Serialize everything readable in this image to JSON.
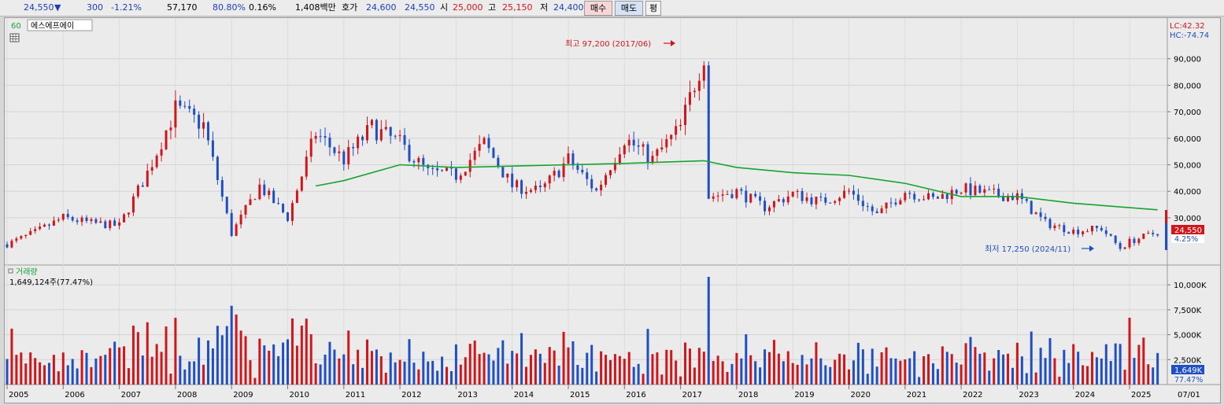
{
  "topbar": {
    "price": "24,550",
    "direction_arrow": "▼",
    "change": "300",
    "change_pct": "-1.21%",
    "volume": "57,170",
    "vol_ratio": "80.80%",
    "turnover_pct": "0.16%",
    "amount": "1,408백만",
    "bid_label": "호가",
    "bid1": "24,600",
    "bid2": "24,550",
    "open_label": "시",
    "open": "25,000",
    "high_label": "고",
    "high": "25,150",
    "low_label": "저",
    "low": "24,400",
    "buy_button": "매수",
    "sell_button": "매도",
    "eval_button": "평"
  },
  "price_panel": {
    "period": "60",
    "stock_name": "에스에프에이",
    "lc_label": "LC:42.32",
    "hc_label": "HC:-74.74",
    "max_annotation": "최고 97,200 (2017/06)",
    "min_annotation": "최저 17,250 (2024/11)",
    "current_price_tag": "24,550",
    "current_pct_tag": "4.25%",
    "y_ticks": [
      "90,000",
      "80,000",
      "70,000",
      "60,000",
      "50,000",
      "40,000",
      "30,000"
    ]
  },
  "volume_panel": {
    "title": "거래량",
    "value_text": "1,649,124주(77.47%)",
    "current_tag": "1,649K",
    "current_pct_tag": "77.47%",
    "y_ticks": [
      "10,000K",
      "7,500K",
      "5,000K",
      "2,500K"
    ]
  },
  "x_axis": {
    "labels": [
      "2005",
      "2006",
      "2007",
      "2008",
      "2009",
      "2010",
      "2011",
      "2012",
      "2013",
      "2014",
      "2015",
      "2016",
      "2017",
      "2018",
      "2019",
      "2020",
      "2021",
      "2022",
      "2023",
      "2024",
      "2025"
    ],
    "right_label": "07/01"
  },
  "colors": {
    "up": "#d0161b",
    "down": "#1f4fc2",
    "ma": "#17a32e",
    "background": "#ebebeb"
  },
  "chart_data": {
    "type": "candlestick",
    "title": "에스에프에이",
    "x_range": [
      "2005",
      "2025"
    ],
    "price_range": [
      15000,
      100000
    ],
    "highest": {
      "value": 97200,
      "date": "2017/06"
    },
    "lowest": {
      "value": 17250,
      "date": "2024/11"
    },
    "last_close": 24550,
    "close_series": [
      {
        "x": "2005",
        "close": 20000
      },
      {
        "x": "2005-07",
        "close": 24500
      },
      {
        "x": "2006",
        "close": 30000
      },
      {
        "x": "2006-07",
        "close": 28000
      },
      {
        "x": "2007",
        "close": 27000
      },
      {
        "x": "2007-07",
        "close": 47000
      },
      {
        "x": "2008",
        "close": 71000
      },
      {
        "x": "2008-07",
        "close": 65000
      },
      {
        "x": "2009",
        "close": 24000
      },
      {
        "x": "2009-07",
        "close": 42000
      },
      {
        "x": "2010",
        "close": 30000
      },
      {
        "x": "2010-07",
        "close": 62000
      },
      {
        "x": "2011",
        "close": 52000
      },
      {
        "x": "2011-07",
        "close": 64000
      },
      {
        "x": "2012",
        "close": 58000
      },
      {
        "x": "2012-07",
        "close": 47000
      },
      {
        "x": "2013",
        "close": 46000
      },
      {
        "x": "2013-07",
        "close": 58000
      },
      {
        "x": "2014",
        "close": 42000
      },
      {
        "x": "2014-07",
        "close": 40000
      },
      {
        "x": "2015",
        "close": 52000
      },
      {
        "x": "2015-07",
        "close": 40000
      },
      {
        "x": "2016",
        "close": 60000
      },
      {
        "x": "2016-07",
        "close": 52000
      },
      {
        "x": "2017",
        "close": 64000
      },
      {
        "x": "2017-06",
        "close": 92000
      },
      {
        "x": "2017-07",
        "close": 38000
      },
      {
        "x": "2018",
        "close": 40000
      },
      {
        "x": "2018-07",
        "close": 34000
      },
      {
        "x": "2019",
        "close": 39000
      },
      {
        "x": "2019-07",
        "close": 36000
      },
      {
        "x": "2020",
        "close": 40000
      },
      {
        "x": "2020-07",
        "close": 31000
      },
      {
        "x": "2021",
        "close": 40000
      },
      {
        "x": "2021-07",
        "close": 37000
      },
      {
        "x": "2022",
        "close": 41000
      },
      {
        "x": "2022-07",
        "close": 39000
      },
      {
        "x": "2023",
        "close": 38000
      },
      {
        "x": "2023-07",
        "close": 28000
      },
      {
        "x": "2024",
        "close": 25000
      },
      {
        "x": "2024-07",
        "close": 26000
      },
      {
        "x": "2024-11",
        "close": 18500
      },
      {
        "x": "2025",
        "close": 21000
      },
      {
        "x": "2025-07",
        "close": 24550
      }
    ],
    "ma_series": [
      {
        "x": "2010-07",
        "value": 42000
      },
      {
        "x": "2011",
        "value": 44000
      },
      {
        "x": "2012",
        "value": 50000
      },
      {
        "x": "2013",
        "value": 49000
      },
      {
        "x": "2014",
        "value": 49500
      },
      {
        "x": "2015",
        "value": 50000
      },
      {
        "x": "2016",
        "value": 50500
      },
      {
        "x": "2017-06",
        "value": 51500
      },
      {
        "x": "2018",
        "value": 49000
      },
      {
        "x": "2019",
        "value": 47000
      },
      {
        "x": "2020",
        "value": 46000
      },
      {
        "x": "2021",
        "value": 43000
      },
      {
        "x": "2022",
        "value": 38000
      },
      {
        "x": "2023",
        "value": 38000
      },
      {
        "x": "2024",
        "value": 35500
      },
      {
        "x": "2025-07",
        "value": 33000
      }
    ],
    "volume_range_k": [
      0,
      11000
    ],
    "last_volume_k": 1649
  }
}
